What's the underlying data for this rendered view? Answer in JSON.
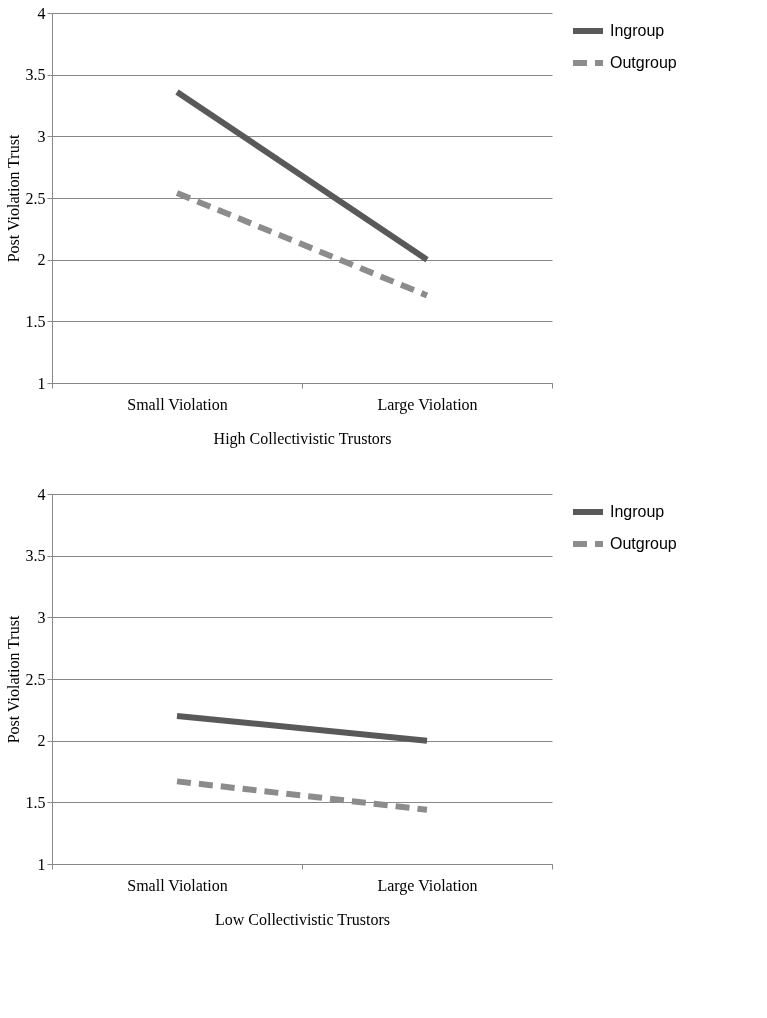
{
  "chart_data": [
    {
      "type": "line",
      "xlabel": "High Collectivistic Trustors",
      "ylabel": "Post Violation Trust",
      "categories": [
        "Small Violation",
        "Large Violation"
      ],
      "ylim": [
        1,
        4
      ],
      "yticks": [
        1,
        1.5,
        2,
        2.5,
        3,
        3.5,
        4
      ],
      "grid": "y",
      "legend": "right",
      "marker": "none",
      "series": [
        {
          "name": "Ingroup",
          "color": "#595959",
          "line_style": "solid",
          "values": [
            3.36,
            2.0
          ]
        },
        {
          "name": "Outgroup",
          "color": "#8c8c8c",
          "line_style": "dashed",
          "values": [
            2.54,
            1.71
          ]
        }
      ]
    },
    {
      "type": "line",
      "xlabel": "Low Collectivistic Trustors",
      "ylabel": "Post Violation Trust",
      "categories": [
        "Small Violation",
        "Large Violation"
      ],
      "ylim": [
        1,
        4
      ],
      "yticks": [
        1,
        1.5,
        2,
        2.5,
        3,
        3.5,
        4
      ],
      "grid": "y",
      "legend": "right",
      "marker": "none",
      "series": [
        {
          "name": "Ingroup",
          "color": "#595959",
          "line_style": "solid",
          "values": [
            2.2,
            2.0
          ]
        },
        {
          "name": "Outgroup",
          "color": "#8c8c8c",
          "line_style": "dashed",
          "values": [
            1.67,
            1.44
          ]
        }
      ]
    }
  ]
}
